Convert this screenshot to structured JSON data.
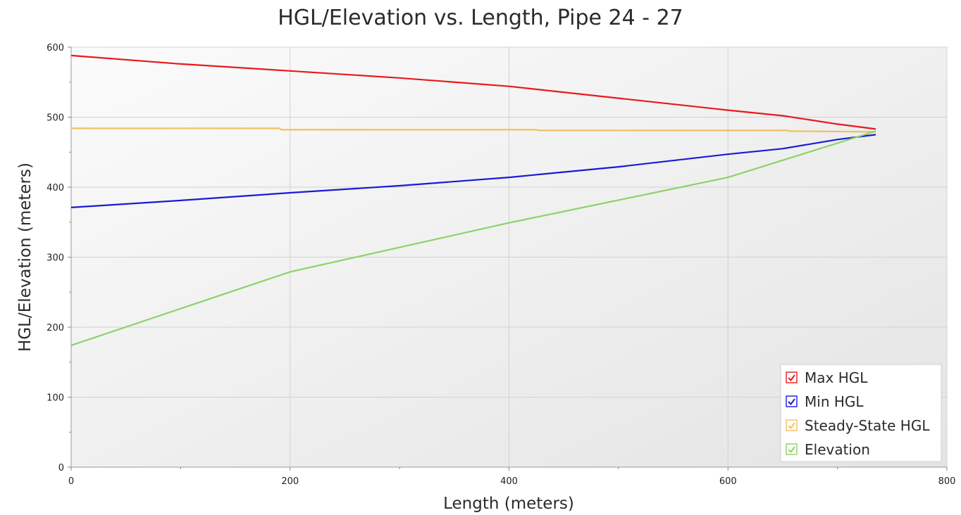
{
  "chart_data": {
    "type": "line",
    "title": "HGL/Elevation vs. Length, Pipe 24 - 27",
    "xlabel": "Length (meters)",
    "ylabel": "HGL/Elevation (meters)",
    "xlim": [
      0,
      800
    ],
    "ylim": [
      0,
      600
    ],
    "x_ticks": [
      "0",
      "200",
      "400",
      "600",
      "800"
    ],
    "y_ticks": [
      "0",
      "100",
      "200",
      "300",
      "400",
      "500",
      "600"
    ],
    "grid": true,
    "legend_position": "bottom-right",
    "series": [
      {
        "name": "Max HGL",
        "color": "#e8191c",
        "points": [
          [
            0,
            588
          ],
          [
            100,
            576
          ],
          [
            200,
            566
          ],
          [
            300,
            556
          ],
          [
            400,
            544
          ],
          [
            500,
            527
          ],
          [
            600,
            510
          ],
          [
            650,
            502
          ],
          [
            700,
            490
          ],
          [
            735,
            483
          ]
        ]
      },
      {
        "name": "Min HGL",
        "color": "#1a1ad6",
        "points": [
          [
            0,
            371
          ],
          [
            100,
            381
          ],
          [
            200,
            392
          ],
          [
            300,
            402
          ],
          [
            400,
            414
          ],
          [
            500,
            429
          ],
          [
            600,
            447
          ],
          [
            650,
            455
          ],
          [
            700,
            468
          ],
          [
            735,
            475
          ]
        ]
      },
      {
        "name": "Steady-State HGL",
        "color": "#f0c060",
        "points": [
          [
            0,
            484
          ],
          [
            190,
            484
          ],
          [
            192,
            482
          ],
          [
            425,
            482
          ],
          [
            427,
            481
          ],
          [
            655,
            481
          ],
          [
            657,
            480
          ],
          [
            735,
            479
          ]
        ]
      },
      {
        "name": "Elevation",
        "color": "#8ed26a",
        "points": [
          [
            0,
            174
          ],
          [
            200,
            279
          ],
          [
            400,
            349
          ],
          [
            600,
            414
          ],
          [
            735,
            480
          ]
        ]
      }
    ]
  }
}
